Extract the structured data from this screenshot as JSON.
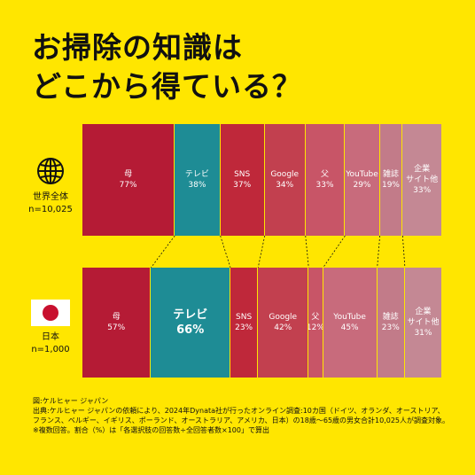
{
  "title": {
    "line1": "お掃除の知識は",
    "line2": "どこから得ている？"
  },
  "rows": [
    {
      "line1": "世界全体",
      "line2": "n=10,025",
      "icon": "globe-icon"
    },
    {
      "line1": "日本",
      "line2": "n=1,000",
      "icon": "japan-flag-icon"
    }
  ],
  "colors": {
    "background": "#FFE600",
    "teal": "#1E8C95",
    "red": "#B51B35"
  },
  "chart_data": {
    "type": "bar",
    "stacked": "horizontal",
    "categories": [
      "世界全体",
      "日本"
    ],
    "series": [
      {
        "name": "母",
        "values": [
          77,
          57
        ],
        "color": "#B51B35"
      },
      {
        "name": "テレビ",
        "values": [
          38,
          66
        ],
        "color": "#1E8C95"
      },
      {
        "name": "SNS",
        "values": [
          37,
          23
        ],
        "color": "#BF283A"
      },
      {
        "name": "Google",
        "values": [
          34,
          42
        ],
        "color": "#C2404F"
      },
      {
        "name": "父",
        "values": [
          33,
          12
        ],
        "color": "#C85567"
      },
      {
        "name": "YouTube",
        "values": [
          29,
          45
        ],
        "color": "#C86B7C"
      },
      {
        "name": "雑誌",
        "values": [
          19,
          23
        ],
        "color": "#C27B89"
      },
      {
        "name": "企業\nサイト他",
        "values": [
          33,
          31
        ],
        "color": "#C48894"
      }
    ],
    "value_suffix": "%"
  },
  "footer": {
    "line1": "図:ケルヒャー ジャパン",
    "line2": "出典:ケルヒャー ジャパンの依頼により、2024年Dynata社が行ったオンライン調査:10カ国（ドイツ、オランダ、オーストリア、",
    "line3": "フランス、ベルギー、イギリス、ポーランド、オーストラリア、アメリカ、日本）の18歳〜65歳の男女合計10,025人が調査対象。",
    "line4": "※複数回答。割合（%）は「各選択肢の回答数÷全回答者数×100」で算出"
  }
}
